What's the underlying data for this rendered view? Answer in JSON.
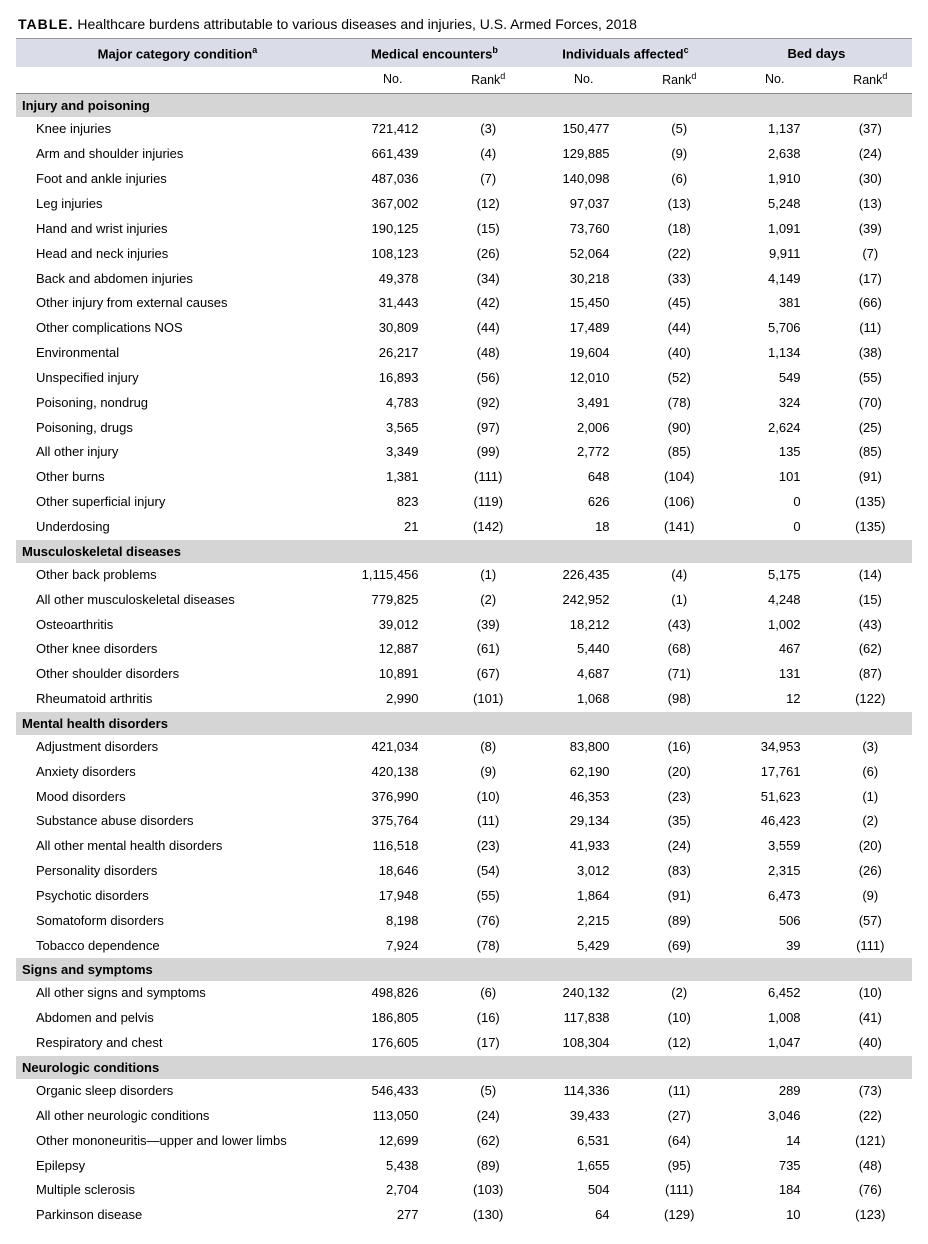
{
  "title_prefix": "TABLE.",
  "title_text": "Healthcare burdens attributable to various diseases and injuries, U.S. Armed Forces, 2018",
  "header": {
    "condition": "Major category condition",
    "cond_sup": "a",
    "groups": [
      {
        "label": "Medical encounters",
        "sup": "b"
      },
      {
        "label": "Individuals affected",
        "sup": "c"
      },
      {
        "label": "Bed days",
        "sup": ""
      }
    ],
    "sub_no": "No.",
    "sub_rank": "Rank",
    "rank_sup": "d"
  },
  "sections": [
    {
      "name": "Injury and poisoning",
      "rows": [
        {
          "cond": "Knee injuries",
          "me_no": "721,412",
          "me_r": "(3)",
          "ia_no": "150,477",
          "ia_r": "(5)",
          "bd_no": "1,137",
          "bd_r": "(37)"
        },
        {
          "cond": "Arm and shoulder injuries",
          "me_no": "661,439",
          "me_r": "(4)",
          "ia_no": "129,885",
          "ia_r": "(9)",
          "bd_no": "2,638",
          "bd_r": "(24)"
        },
        {
          "cond": "Foot and ankle injuries",
          "me_no": "487,036",
          "me_r": "(7)",
          "ia_no": "140,098",
          "ia_r": "(6)",
          "bd_no": "1,910",
          "bd_r": "(30)"
        },
        {
          "cond": "Leg injuries",
          "me_no": "367,002",
          "me_r": "(12)",
          "ia_no": "97,037",
          "ia_r": "(13)",
          "bd_no": "5,248",
          "bd_r": "(13)"
        },
        {
          "cond": "Hand and wrist injuries",
          "me_no": "190,125",
          "me_r": "(15)",
          "ia_no": "73,760",
          "ia_r": "(18)",
          "bd_no": "1,091",
          "bd_r": "(39)"
        },
        {
          "cond": "Head and neck injuries",
          "me_no": "108,123",
          "me_r": "(26)",
          "ia_no": "52,064",
          "ia_r": "(22)",
          "bd_no": "9,911",
          "bd_r": "(7)"
        },
        {
          "cond": "Back and abdomen injuries",
          "me_no": "49,378",
          "me_r": "(34)",
          "ia_no": "30,218",
          "ia_r": "(33)",
          "bd_no": "4,149",
          "bd_r": "(17)"
        },
        {
          "cond": "Other injury from external causes",
          "me_no": "31,443",
          "me_r": "(42)",
          "ia_no": "15,450",
          "ia_r": "(45)",
          "bd_no": "381",
          "bd_r": "(66)"
        },
        {
          "cond": "Other complications NOS",
          "me_no": "30,809",
          "me_r": "(44)",
          "ia_no": "17,489",
          "ia_r": "(44)",
          "bd_no": "5,706",
          "bd_r": "(11)"
        },
        {
          "cond": "Environmental",
          "me_no": "26,217",
          "me_r": "(48)",
          "ia_no": "19,604",
          "ia_r": "(40)",
          "bd_no": "1,134",
          "bd_r": "(38)"
        },
        {
          "cond": "Unspecified injury",
          "me_no": "16,893",
          "me_r": "(56)",
          "ia_no": "12,010",
          "ia_r": "(52)",
          "bd_no": "549",
          "bd_r": "(55)"
        },
        {
          "cond": "Poisoning, nondrug",
          "me_no": "4,783",
          "me_r": "(92)",
          "ia_no": "3,491",
          "ia_r": "(78)",
          "bd_no": "324",
          "bd_r": "(70)"
        },
        {
          "cond": "Poisoning, drugs",
          "me_no": "3,565",
          "me_r": "(97)",
          "ia_no": "2,006",
          "ia_r": "(90)",
          "bd_no": "2,624",
          "bd_r": "(25)"
        },
        {
          "cond": "All other injury",
          "me_no": "3,349",
          "me_r": "(99)",
          "ia_no": "2,772",
          "ia_r": "(85)",
          "bd_no": "135",
          "bd_r": "(85)"
        },
        {
          "cond": "Other burns",
          "me_no": "1,381",
          "me_r": "(111)",
          "ia_no": "648",
          "ia_r": "(104)",
          "bd_no": "101",
          "bd_r": "(91)"
        },
        {
          "cond": "Other superficial injury",
          "me_no": "823",
          "me_r": "(119)",
          "ia_no": "626",
          "ia_r": "(106)",
          "bd_no": "0",
          "bd_r": "(135)"
        },
        {
          "cond": "Underdosing",
          "me_no": "21",
          "me_r": "(142)",
          "ia_no": "18",
          "ia_r": "(141)",
          "bd_no": "0",
          "bd_r": "(135)"
        }
      ]
    },
    {
      "name": "Musculoskeletal diseases",
      "rows": [
        {
          "cond": "Other back problems",
          "me_no": "1,115,456",
          "me_r": "(1)",
          "ia_no": "226,435",
          "ia_r": "(4)",
          "bd_no": "5,175",
          "bd_r": "(14)"
        },
        {
          "cond": "All other musculoskeletal diseases",
          "me_no": "779,825",
          "me_r": "(2)",
          "ia_no": "242,952",
          "ia_r": "(1)",
          "bd_no": "4,248",
          "bd_r": "(15)"
        },
        {
          "cond": "Osteoarthritis",
          "me_no": "39,012",
          "me_r": "(39)",
          "ia_no": "18,212",
          "ia_r": "(43)",
          "bd_no": "1,002",
          "bd_r": "(43)"
        },
        {
          "cond": "Other knee disorders",
          "me_no": "12,887",
          "me_r": "(61)",
          "ia_no": "5,440",
          "ia_r": "(68)",
          "bd_no": "467",
          "bd_r": "(62)"
        },
        {
          "cond": "Other shoulder disorders",
          "me_no": "10,891",
          "me_r": "(67)",
          "ia_no": "4,687",
          "ia_r": "(71)",
          "bd_no": "131",
          "bd_r": "(87)"
        },
        {
          "cond": "Rheumatoid arthritis",
          "me_no": "2,990",
          "me_r": "(101)",
          "ia_no": "1,068",
          "ia_r": "(98)",
          "bd_no": "12",
          "bd_r": "(122)"
        }
      ]
    },
    {
      "name": "Mental health disorders",
      "rows": [
        {
          "cond": "Adjustment disorders",
          "me_no": "421,034",
          "me_r": "(8)",
          "ia_no": "83,800",
          "ia_r": "(16)",
          "bd_no": "34,953",
          "bd_r": "(3)"
        },
        {
          "cond": "Anxiety disorders",
          "me_no": "420,138",
          "me_r": "(9)",
          "ia_no": "62,190",
          "ia_r": "(20)",
          "bd_no": "17,761",
          "bd_r": "(6)"
        },
        {
          "cond": "Mood disorders",
          "me_no": "376,990",
          "me_r": "(10)",
          "ia_no": "46,353",
          "ia_r": "(23)",
          "bd_no": "51,623",
          "bd_r": "(1)"
        },
        {
          "cond": "Substance abuse disorders",
          "me_no": "375,764",
          "me_r": "(11)",
          "ia_no": "29,134",
          "ia_r": "(35)",
          "bd_no": "46,423",
          "bd_r": "(2)"
        },
        {
          "cond": "All other mental health disorders",
          "me_no": "116,518",
          "me_r": "(23)",
          "ia_no": "41,933",
          "ia_r": "(24)",
          "bd_no": "3,559",
          "bd_r": "(20)"
        },
        {
          "cond": "Personality disorders",
          "me_no": "18,646",
          "me_r": "(54)",
          "ia_no": "3,012",
          "ia_r": "(83)",
          "bd_no": "2,315",
          "bd_r": "(26)"
        },
        {
          "cond": "Psychotic disorders",
          "me_no": "17,948",
          "me_r": "(55)",
          "ia_no": "1,864",
          "ia_r": "(91)",
          "bd_no": "6,473",
          "bd_r": "(9)"
        },
        {
          "cond": "Somatoform disorders",
          "me_no": "8,198",
          "me_r": "(76)",
          "ia_no": "2,215",
          "ia_r": "(89)",
          "bd_no": "506",
          "bd_r": "(57)"
        },
        {
          "cond": "Tobacco dependence",
          "me_no": "7,924",
          "me_r": "(78)",
          "ia_no": "5,429",
          "ia_r": "(69)",
          "bd_no": "39",
          "bd_r": "(111)"
        }
      ]
    },
    {
      "name": "Signs and symptoms",
      "rows": [
        {
          "cond": "All other signs and symptoms",
          "me_no": "498,826",
          "me_r": "(6)",
          "ia_no": "240,132",
          "ia_r": "(2)",
          "bd_no": "6,452",
          "bd_r": "(10)"
        },
        {
          "cond": "Abdomen and pelvis",
          "me_no": "186,805",
          "me_r": "(16)",
          "ia_no": "117,838",
          "ia_r": "(10)",
          "bd_no": "1,008",
          "bd_r": "(41)"
        },
        {
          "cond": "Respiratory and chest",
          "me_no": "176,605",
          "me_r": "(17)",
          "ia_no": "108,304",
          "ia_r": "(12)",
          "bd_no": "1,047",
          "bd_r": "(40)"
        }
      ]
    },
    {
      "name": "Neurologic conditions",
      "rows": [
        {
          "cond": "Organic sleep disorders",
          "me_no": "546,433",
          "me_r": "(5)",
          "ia_no": "114,336",
          "ia_r": "(11)",
          "bd_no": "289",
          "bd_r": "(73)"
        },
        {
          "cond": "All other neurologic conditions",
          "me_no": "113,050",
          "me_r": "(24)",
          "ia_no": "39,433",
          "ia_r": "(27)",
          "bd_no": "3,046",
          "bd_r": "(22)"
        },
        {
          "cond": "Other mononeuritis—upper and lower limbs",
          "me_no": "12,699",
          "me_r": "(62)",
          "ia_no": "6,531",
          "ia_r": "(64)",
          "bd_no": "14",
          "bd_r": "(121)"
        },
        {
          "cond": "Epilepsy",
          "me_no": "5,438",
          "me_r": "(89)",
          "ia_no": "1,655",
          "ia_r": "(95)",
          "bd_no": "735",
          "bd_r": "(48)"
        },
        {
          "cond": "Multiple sclerosis",
          "me_no": "2,704",
          "me_r": "(103)",
          "ia_no": "504",
          "ia_r": "(111)",
          "bd_no": "184",
          "bd_r": "(76)"
        },
        {
          "cond": "Parkinson disease",
          "me_no": "277",
          "me_r": "(130)",
          "ia_no": "64",
          "ia_r": "(129)",
          "bd_no": "10",
          "bd_r": "(123)"
        }
      ]
    }
  ]
}
